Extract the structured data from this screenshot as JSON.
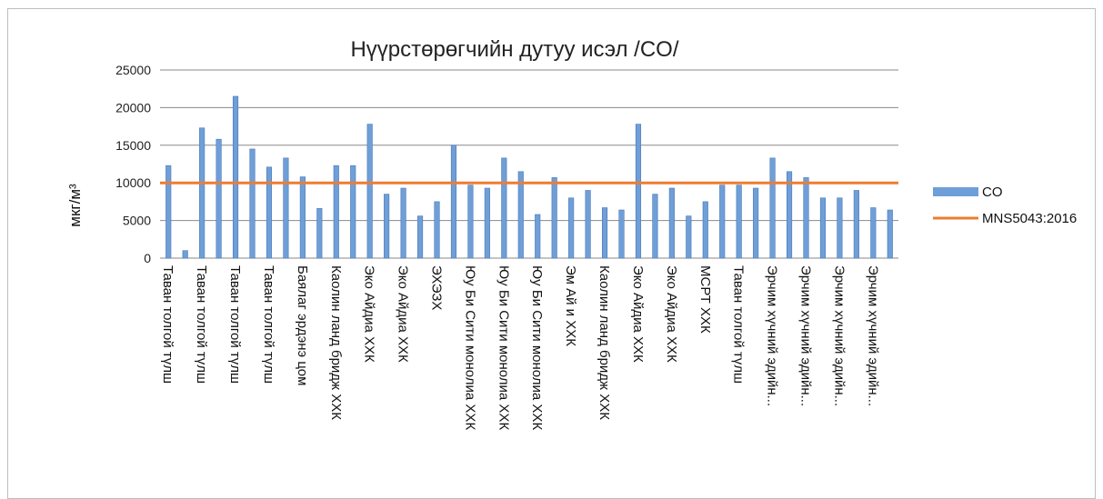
{
  "chart_data": {
    "type": "bar",
    "title": "Нүүрстөрөгчийн дутуу исэл /CO/",
    "ylabel": "мкг/м³",
    "xlabel": "",
    "ylim": [
      0,
      25000
    ],
    "yticks": [
      0,
      5000,
      10000,
      15000,
      20000,
      25000
    ],
    "grid": true,
    "legend_position": "right",
    "categories": [
      "Таван толгой түлш",
      "",
      "Таван толгой түлш",
      "",
      "Таван толгой түлш",
      "",
      "Таван толгой түлш",
      "",
      "Баялаг эрдэнэ цом",
      "",
      "Каолин ланд бридж ХХК",
      "",
      "Эко Айдиа ХХК",
      "",
      "Эко Айдиа ХХК",
      "",
      "ЭХЭЗХ",
      "",
      "Юу Би Сити монолиа ХХК",
      "",
      "Юу Би Сити монолиа ХХК",
      "",
      "Юу Би Сити монолиа ХХК",
      "",
      "Эм Ай и ХХК",
      "",
      "Каолин ланд бридж ХХК",
      "",
      "Эко Айдиа ХХК",
      "",
      "Эко Айдиа ХХК",
      "",
      "МСРТ ХХК",
      "",
      "Таван толгой түлш",
      "",
      "Эрчим хүчний эдийн...",
      "",
      "Эрчим хүчний эдийн...",
      "",
      "Эрчим хүчний эдийн...",
      "",
      "Эрчим хүчний эдийн...",
      ""
    ],
    "series": [
      {
        "name": "CO",
        "type": "bar",
        "color": "#6f9fd8",
        "values": [
          12300,
          1000,
          17300,
          15800,
          21500,
          14500,
          12100,
          13300,
          10800,
          6600,
          12300,
          12300,
          17800,
          8500,
          9300,
          5600,
          7500,
          15000,
          9700,
          9300,
          13300,
          11500,
          5800,
          10700,
          8000,
          9000,
          6700,
          6400,
          17800,
          8500,
          9300,
          5600,
          7500,
          9700,
          9700,
          9300,
          13300,
          11500,
          10700,
          8000,
          8000,
          9000,
          6700,
          6400
        ]
      },
      {
        "name": "MNS5043:2016",
        "type": "line",
        "color": "#ed7d31",
        "value": 10000
      }
    ]
  }
}
